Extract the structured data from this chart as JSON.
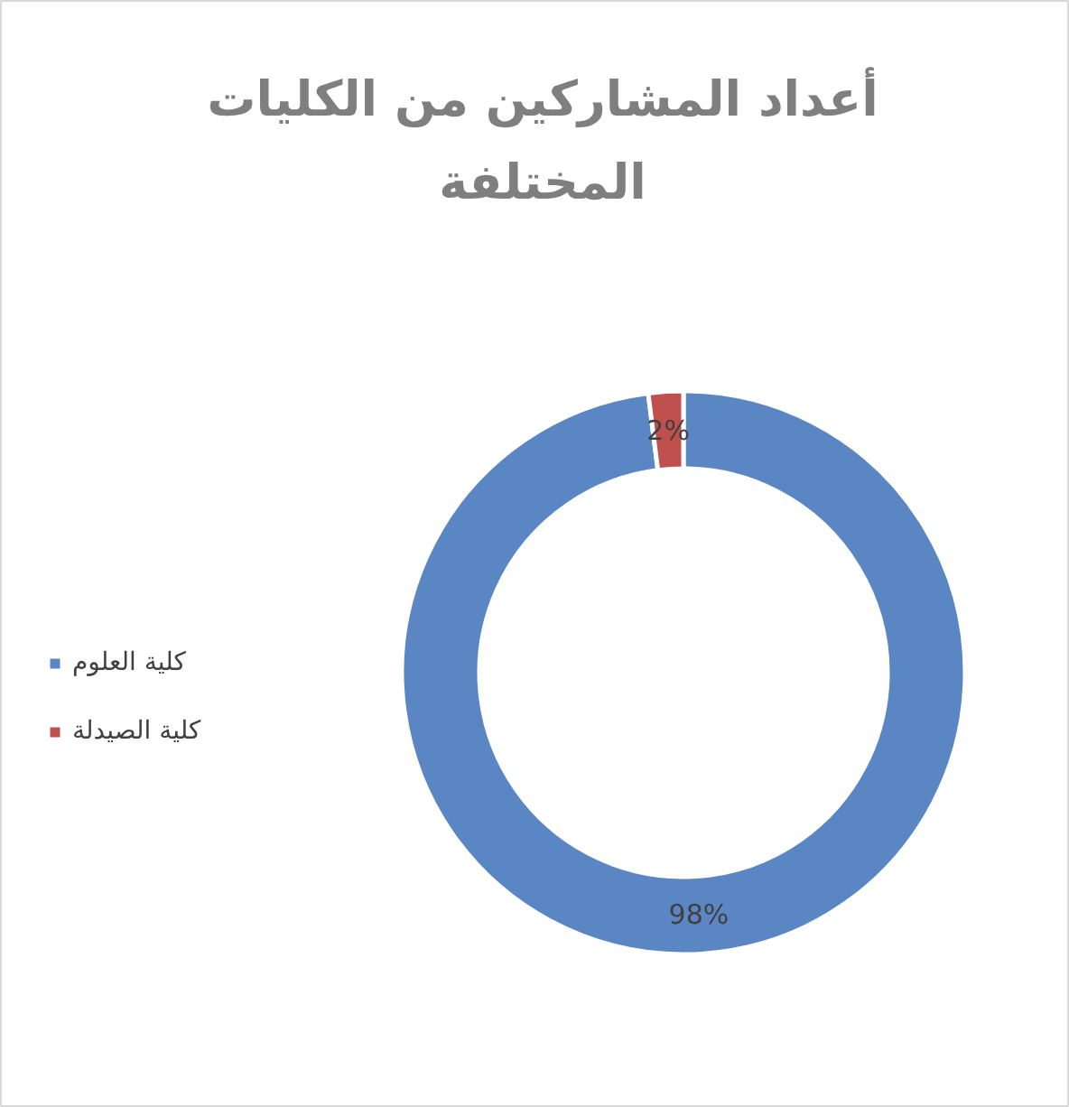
{
  "chart_data": {
    "type": "donut",
    "title": "أعداد المشاركين من الكليات المختلفة",
    "categories": [
      "كلية العلوم",
      "كلية الصيدلة"
    ],
    "values": [
      98,
      2
    ],
    "colors": [
      "#5a86c3",
      "#c0504d"
    ],
    "value_labels": [
      "98%",
      "2%"
    ],
    "legend": "left"
  }
}
